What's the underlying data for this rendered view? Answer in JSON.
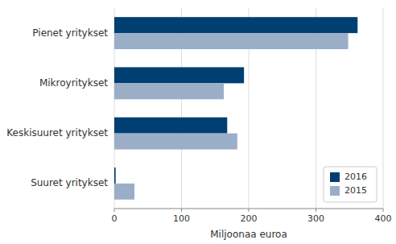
{
  "chart_data": {
    "type": "bar",
    "orientation": "horizontal",
    "categories": [
      "Pienet yritykset",
      "Mikroyritykset",
      "Keskisuuret yritykset",
      "Suuret yritykset"
    ],
    "series": [
      {
        "name": "2016",
        "color": "#003f72",
        "values": [
          362,
          193,
          168,
          2
        ]
      },
      {
        "name": "2015",
        "color": "#9BAEC8",
        "values": [
          348,
          163,
          183,
          30
        ]
      }
    ],
    "xlabel": "Miljoonaa euroa",
    "xlim": [
      0,
      400
    ],
    "xticks": [
      0,
      100,
      200,
      300,
      400
    ],
    "grid": true,
    "legend": "lower right"
  }
}
